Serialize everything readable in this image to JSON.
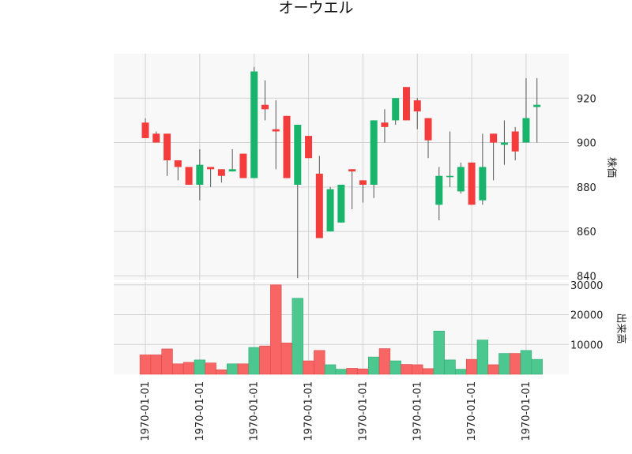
{
  "chart_data": {
    "type": "candlestick",
    "title": "オーウエル",
    "price_panel": {
      "ylabel": "株価",
      "ylim": [
        838,
        940
      ],
      "yticks": [
        840,
        860,
        880,
        900,
        920
      ],
      "grid": true
    },
    "volume_panel": {
      "ylabel": "出来高",
      "ylim": [
        0,
        31000
      ],
      "yticks": [
        10000,
        20000,
        30000
      ],
      "grid": true
    },
    "x_tick_labels": [
      "1970-01-01",
      "1970-01-01",
      "1970-01-01",
      "1970-01-01",
      "1970-01-01",
      "1970-01-01",
      "1970-01-01",
      "1970-01-01"
    ],
    "x_tick_indices": [
      0,
      5,
      10,
      15,
      20,
      25,
      30,
      35
    ],
    "colors": {
      "up": "#18b46b",
      "down": "#f43c3c",
      "up_volume": "#4cc78f",
      "down_volume": "#f76565",
      "wick": "#555555",
      "panel_bg": "#f8f8f8",
      "grid": "#d2d2d2"
    },
    "candles": [
      {
        "open": 909,
        "high": 911,
        "low": 902,
        "close": 902,
        "volume": 6500
      },
      {
        "open": 904,
        "high": 905,
        "low": 900,
        "close": 900,
        "volume": 6500
      },
      {
        "open": 904,
        "high": 904,
        "low": 885,
        "close": 892,
        "volume": 8500
      },
      {
        "open": 892,
        "high": 892,
        "low": 883,
        "close": 889,
        "volume": 3500
      },
      {
        "open": 889,
        "high": 889,
        "low": 881,
        "close": 881,
        "volume": 4000
      },
      {
        "open": 881,
        "high": 897,
        "low": 874,
        "close": 890,
        "volume": 4800
      },
      {
        "open": 889,
        "high": 889,
        "low": 880,
        "close": 888,
        "volume": 3800
      },
      {
        "open": 888,
        "high": 888,
        "low": 882,
        "close": 885,
        "volume": 1500
      },
      {
        "open": 887,
        "high": 897,
        "low": 887,
        "close": 888,
        "volume": 3500
      },
      {
        "open": 895,
        "high": 895,
        "low": 884,
        "close": 884,
        "volume": 3500
      },
      {
        "open": 884,
        "high": 934,
        "low": 884,
        "close": 932,
        "volume": 9000
      },
      {
        "open": 917,
        "high": 928,
        "low": 910,
        "close": 915,
        "volume": 9500
      },
      {
        "open": 906,
        "high": 919,
        "low": 888,
        "close": 905,
        "volume": 30000
      },
      {
        "open": 912,
        "high": 912,
        "low": 884,
        "close": 884,
        "volume": 10500
      },
      {
        "open": 881,
        "high": 908,
        "low": 839,
        "close": 908,
        "volume": 25500
      },
      {
        "open": 903,
        "high": 903,
        "low": 893,
        "close": 893,
        "volume": 4500
      },
      {
        "open": 886,
        "high": 894,
        "low": 857,
        "close": 857,
        "volume": 8000
      },
      {
        "open": 860,
        "high": 880,
        "low": 860,
        "close": 879,
        "volume": 3200
      },
      {
        "open": 864,
        "high": 881,
        "low": 864,
        "close": 881,
        "volume": 1700
      },
      {
        "open": 888,
        "high": 888,
        "low": 870,
        "close": 887,
        "volume": 2000
      },
      {
        "open": 883,
        "high": 883,
        "low": 873,
        "close": 881,
        "volume": 1800
      },
      {
        "open": 881,
        "high": 910,
        "low": 875,
        "close": 910,
        "volume": 5800
      },
      {
        "open": 909,
        "high": 915,
        "low": 900,
        "close": 907,
        "volume": 8600
      },
      {
        "open": 910,
        "high": 920,
        "low": 908,
        "close": 920,
        "volume": 4500
      },
      {
        "open": 925,
        "high": 925,
        "low": 910,
        "close": 910,
        "volume": 3300
      },
      {
        "open": 919,
        "high": 920,
        "low": 906,
        "close": 914,
        "volume": 3200
      },
      {
        "open": 911,
        "high": 911,
        "low": 893,
        "close": 901,
        "volume": 1900
      },
      {
        "open": 872,
        "high": 889,
        "low": 865,
        "close": 885,
        "volume": 14500
      },
      {
        "open": 885,
        "high": 905,
        "low": 880,
        "close": 885,
        "volume": 4800
      },
      {
        "open": 878,
        "high": 891,
        "low": 877,
        "close": 889,
        "volume": 1700
      },
      {
        "open": 891,
        "high": 891,
        "low": 872,
        "close": 872,
        "volume": 5000
      },
      {
        "open": 874,
        "high": 904,
        "low": 872,
        "close": 889,
        "volume": 11500
      },
      {
        "open": 904,
        "high": 904,
        "low": 883,
        "close": 900,
        "volume": 3200
      },
      {
        "open": 899,
        "high": 910,
        "low": 890,
        "close": 900,
        "volume": 7000
      },
      {
        "open": 905,
        "high": 907,
        "low": 892,
        "close": 896,
        "volume": 7000
      },
      {
        "open": 900,
        "high": 929,
        "low": 900,
        "close": 911,
        "volume": 8000
      },
      {
        "open": 916,
        "high": 929,
        "low": 900,
        "close": 917,
        "volume": 5000
      }
    ]
  }
}
